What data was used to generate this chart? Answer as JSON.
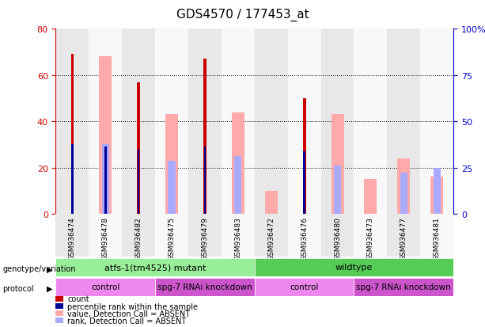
{
  "title": "GDS4570 / 177453_at",
  "samples": [
    "GSM936474",
    "GSM936478",
    "GSM936482",
    "GSM936475",
    "GSM936479",
    "GSM936483",
    "GSM936472",
    "GSM936476",
    "GSM936480",
    "GSM936473",
    "GSM936477",
    "GSM936481"
  ],
  "count_values": [
    69,
    0,
    57,
    0,
    67,
    0,
    0,
    50,
    0,
    0,
    0,
    0
  ],
  "rank_values": [
    30,
    29,
    28,
    0,
    29,
    0,
    0,
    27,
    0,
    0,
    0,
    0
  ],
  "absent_value": [
    0,
    68,
    0,
    43,
    0,
    44,
    10,
    0,
    43,
    15,
    24,
    16
  ],
  "absent_rank": [
    0,
    30,
    0,
    23,
    0,
    25,
    0,
    0,
    21,
    0,
    18,
    20
  ],
  "ylim_left": [
    0,
    80
  ],
  "ylim_right": [
    0,
    100
  ],
  "yticks_left": [
    0,
    20,
    40,
    60,
    80
  ],
  "yticks_right": [
    0,
    25,
    50,
    75,
    100
  ],
  "ytick_labels_left": [
    "0",
    "20",
    "40",
    "60",
    "80"
  ],
  "ytick_labels_right": [
    "0",
    "25",
    "50",
    "75",
    "100%"
  ],
  "color_count": "#cc0000",
  "color_rank": "#000099",
  "color_absent_value": "#ffaaaa",
  "color_absent_rank": "#aaaaff",
  "genotype_groups": [
    {
      "label": "atfs-1(tm4525) mutant",
      "start": 0,
      "end": 6,
      "color": "#99ee99"
    },
    {
      "label": "wildtype",
      "start": 6,
      "end": 12,
      "color": "#55cc55"
    }
  ],
  "protocol_groups": [
    {
      "label": "control",
      "start": 0,
      "end": 3,
      "color": "#ee88ee"
    },
    {
      "label": "spg-7 RNAi knockdown",
      "start": 3,
      "end": 6,
      "color": "#cc55cc"
    },
    {
      "label": "control",
      "start": 6,
      "end": 9,
      "color": "#ee88ee"
    },
    {
      "label": "spg-7 RNAi knockdown",
      "start": 9,
      "end": 12,
      "color": "#cc55cc"
    }
  ],
  "legend_items": [
    {
      "label": "count",
      "color": "#cc0000"
    },
    {
      "label": "percentile rank within the sample",
      "color": "#000099"
    },
    {
      "label": "value, Detection Call = ABSENT",
      "color": "#ffaaaa"
    },
    {
      "label": "rank, Detection Call = ABSENT",
      "color": "#aaaaff"
    }
  ],
  "background_color": "#ffffff",
  "axis_label_color_left": "#cc0000",
  "axis_label_color_right": "#0000cc",
  "col_bg_even": "#e8e8e8",
  "col_bg_odd": "#f8f8f8"
}
